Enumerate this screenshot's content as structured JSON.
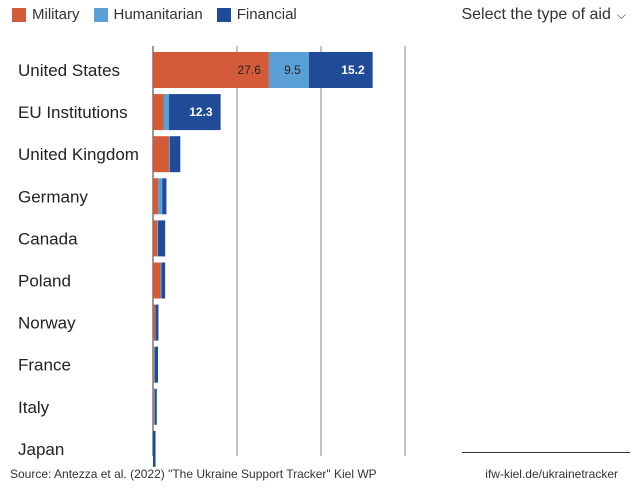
{
  "legend": {
    "items": [
      {
        "label": "Military",
        "color": "#d35b3a"
      },
      {
        "label": "Humanitarian",
        "color": "#5a9fd6"
      },
      {
        "label": "Financial",
        "color": "#1f4b99"
      }
    ]
  },
  "selector": {
    "label": "Select the type of aid",
    "icon": "chevron-down-icon"
  },
  "footer": {
    "source": "Source: Antezza et al. (2022) \"The Ukraine Support Tracker\" Kiel WP",
    "site": "ifw-kiel.de/ukrainetracker"
  },
  "chart_data": {
    "type": "bar",
    "orientation": "horizontal",
    "stacked": true,
    "categories": [
      "United States",
      "EU Institutions",
      "United Kingdom",
      "Germany",
      "Canada",
      "Poland",
      "Norway",
      "France",
      "Italy",
      "Japan"
    ],
    "series": [
      {
        "name": "Military",
        "color": "#d35b3a",
        "values": [
          27.6,
          2.5,
          3.8,
          1.2,
          1.0,
          1.8,
          0.5,
          0.2,
          0.2,
          0.0
        ],
        "labels": [
          "27.6",
          "",
          "",
          "",
          "",
          "",
          "",
          "",
          "",
          ""
        ]
      },
      {
        "name": "Humanitarian",
        "color": "#5a9fd6",
        "values": [
          9.5,
          1.3,
          0.2,
          1.0,
          0.2,
          0.2,
          0.1,
          0.2,
          0.2,
          0.0
        ],
        "labels": [
          "9.5",
          "",
          "",
          "",
          "",
          "",
          "",
          "",
          "",
          ""
        ]
      },
      {
        "name": "Financial",
        "color": "#1f4b99",
        "values": [
          15.2,
          12.3,
          2.5,
          1.0,
          1.7,
          0.9,
          0.7,
          0.8,
          0.5,
          0.6
        ],
        "labels": [
          "15.2",
          "12.3",
          "",
          "",
          "",
          "",
          "",
          "",
          "",
          ""
        ]
      }
    ],
    "xlim": [
      0,
      60
    ],
    "grid_values": [
      0,
      20,
      40,
      60
    ],
    "gridlines": true,
    "legend_position": "top-left"
  }
}
